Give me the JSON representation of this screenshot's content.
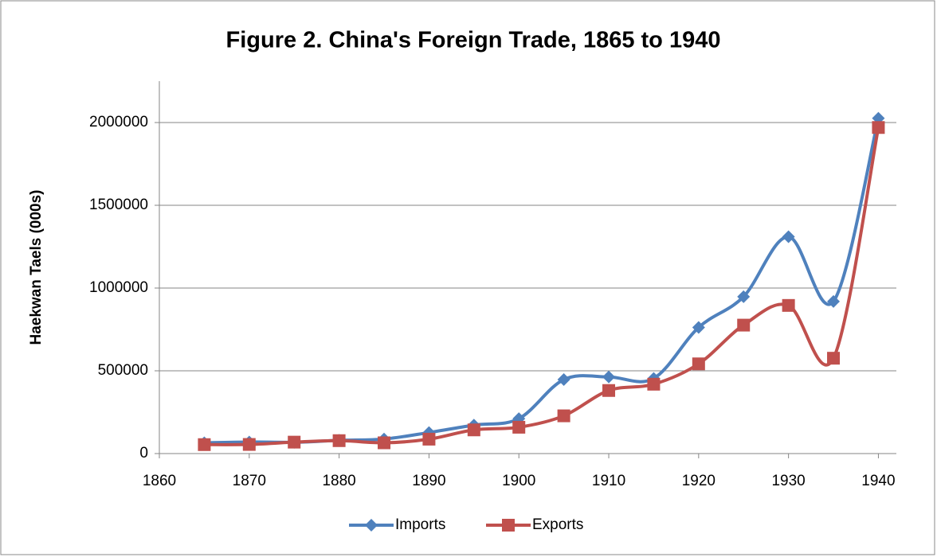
{
  "chart_data": {
    "type": "line",
    "title": "Figure 2. China's Foreign Trade, 1865 to 1940",
    "y_label": "Haekwan Taels (000s)",
    "x": [
      1865,
      1870,
      1875,
      1880,
      1885,
      1890,
      1895,
      1900,
      1905,
      1910,
      1915,
      1920,
      1925,
      1930,
      1935,
      1940
    ],
    "series": [
      {
        "name": "Imports",
        "color": "#4f81bd",
        "marker": "diamond",
        "values": [
          65000,
          70000,
          68000,
          80000,
          88000,
          127000,
          172000,
          211000,
          447000,
          463000,
          454000,
          762000,
          948000,
          1310000,
          919000,
          2026000
        ]
      },
      {
        "name": "Exports",
        "color": "#c0504d",
        "marker": "square",
        "values": [
          54000,
          55000,
          69000,
          78000,
          65000,
          87000,
          143000,
          159000,
          228000,
          381000,
          419000,
          542000,
          776000,
          895000,
          576000,
          1970000
        ]
      }
    ],
    "xlim": [
      1860,
      1942
    ],
    "xticks": [
      1860,
      1870,
      1880,
      1890,
      1900,
      1910,
      1920,
      1930,
      1940
    ],
    "ylim": [
      0,
      2250000
    ],
    "yticks": [
      0,
      500000,
      1000000,
      1500000,
      2000000
    ],
    "grid": true,
    "smooth": true,
    "legend": "bottom"
  }
}
